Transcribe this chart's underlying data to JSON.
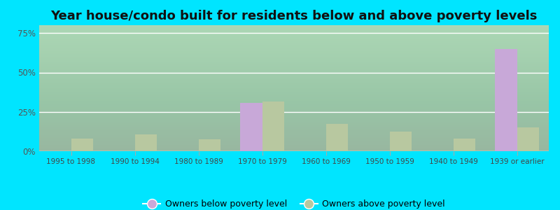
{
  "title": "Year house/condo built for residents below and above poverty levels",
  "categories": [
    "1995 to 1998",
    "1990 to 1994",
    "1980 to 1989",
    "1970 to 1979",
    "1960 to 1969",
    "1950 to 1959",
    "1940 to 1949",
    "1939 or earlier"
  ],
  "below_poverty": [
    0,
    0,
    0,
    30.5,
    0,
    0,
    0,
    65.0
  ],
  "above_poverty": [
    8.0,
    10.5,
    7.5,
    31.5,
    17.5,
    12.5,
    8.0,
    15.0
  ],
  "below_color": "#c8a8d8",
  "above_color": "#b8c8a0",
  "ylim": [
    0,
    80
  ],
  "yticks": [
    0,
    25,
    50,
    75
  ],
  "ytick_labels": [
    "0%",
    "25%",
    "50%",
    "75%"
  ],
  "outer_background": "#00e5ff",
  "bg_top_color": "#f0faf0",
  "bg_bottom_color": "#c8e8c0",
  "legend_below": "Owners below poverty level",
  "legend_above": "Owners above poverty level",
  "title_fontsize": 13,
  "bar_width": 0.35
}
